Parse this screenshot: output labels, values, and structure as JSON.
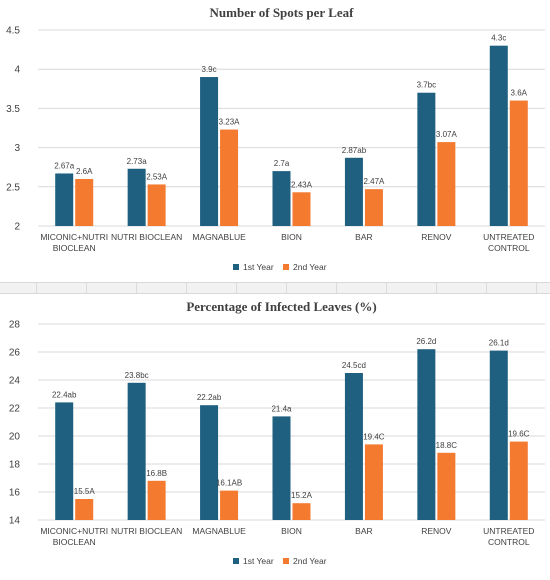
{
  "colors": {
    "year1": "#1f5f7f",
    "year2": "#f47a30",
    "grid": "#d9d9d9",
    "text": "#404040"
  },
  "chart_data": [
    {
      "type": "bar",
      "title": "Number of Spots per Leaf",
      "categories": [
        "MICONIC+NUTRI\nBIOCLEAN",
        "NUTRI BIOCLEAN",
        "MAGNABLUE",
        "BION",
        "BAR",
        "RENOV",
        "UNTREATED\nCONTROL"
      ],
      "series": [
        {
          "name": "1st Year",
          "values": [
            2.67,
            2.73,
            3.9,
            2.7,
            2.87,
            3.7,
            4.3
          ],
          "labels": [
            "2.67a",
            "2.73a",
            "3.9c",
            "2.7a",
            "2.87ab",
            "3.7bc",
            "4.3c"
          ]
        },
        {
          "name": "2nd Year",
          "values": [
            2.6,
            2.53,
            3.23,
            2.43,
            2.47,
            3.07,
            3.6
          ],
          "labels": [
            "2.6A",
            "2.53A",
            "3.23A",
            "2.43A",
            "2.47A",
            "3.07A",
            "3.6A"
          ]
        }
      ],
      "ylim": [
        2,
        4.5
      ],
      "yticks": [
        "2",
        "2.5",
        "3",
        "3.5",
        "4",
        "4.5"
      ],
      "grid": true,
      "legend": "bottom"
    },
    {
      "type": "bar",
      "title": "Percentage of Infected Leaves (%)",
      "categories": [
        "MICONIC+NUTRI\nBIOCLEAN",
        "NUTRI BIOCLEAN",
        "MAGNABLUE",
        "BION",
        "BAR",
        "RENOV",
        "UNTREATED\nCONTROL"
      ],
      "series": [
        {
          "name": "1st Year",
          "values": [
            22.4,
            23.8,
            22.2,
            21.4,
            24.5,
            26.2,
            26.1
          ],
          "labels": [
            "22.4ab",
            "23.8bc",
            "22.2ab",
            "21.4a",
            "24.5cd",
            "26.2d",
            "26.1d"
          ]
        },
        {
          "name": "2nd Year",
          "values": [
            15.5,
            16.8,
            16.1,
            15.2,
            19.4,
            18.8,
            19.6
          ],
          "labels": [
            "15.5A",
            "16.8B",
            "16.1AB",
            "15.2A",
            "19.4C",
            "18.8C",
            "19.6C"
          ]
        }
      ],
      "ylim": [
        14,
        28
      ],
      "yticks": [
        "14",
        "16",
        "18",
        "20",
        "22",
        "24",
        "26",
        "28"
      ],
      "grid": true,
      "legend": "bottom"
    }
  ]
}
